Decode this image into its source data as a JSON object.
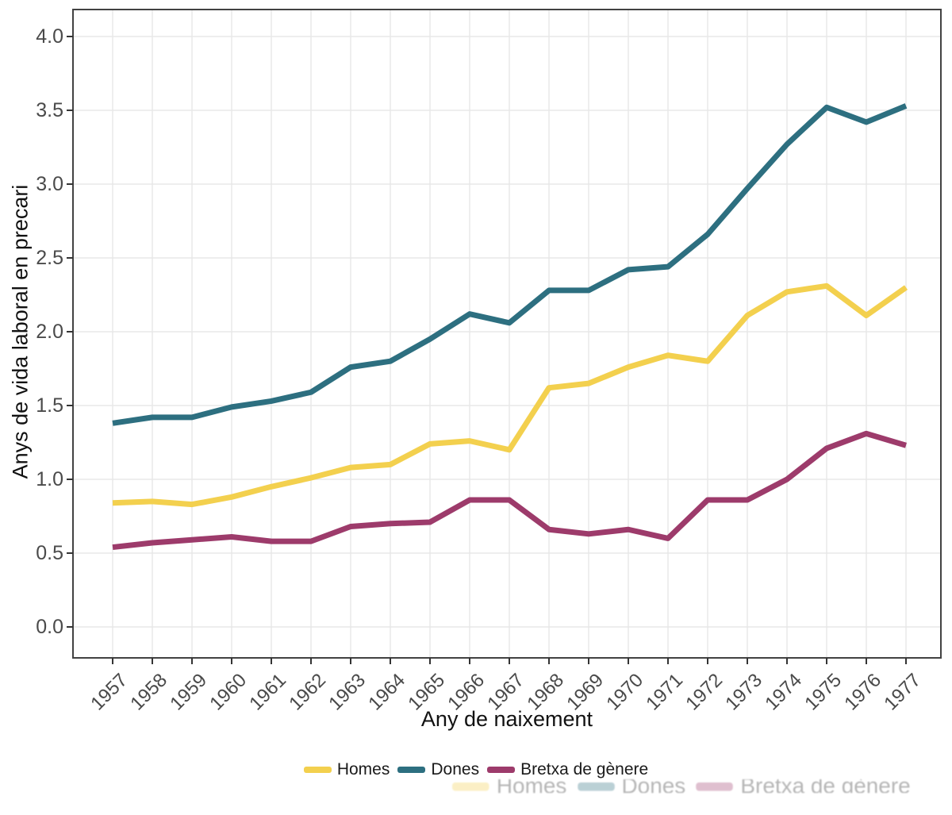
{
  "chart_data": {
    "type": "line",
    "title": "",
    "xlabel": "Any de naixement",
    "ylabel": "Anys de vida laboral en precari",
    "x": [
      1957,
      1958,
      1959,
      1960,
      1961,
      1962,
      1963,
      1964,
      1965,
      1966,
      1967,
      1968,
      1969,
      1970,
      1971,
      1972,
      1973,
      1974,
      1975,
      1976,
      1977
    ],
    "series": [
      {
        "name": "Homes",
        "color": "#F3D04E",
        "values": [
          0.84,
          0.85,
          0.83,
          0.88,
          0.95,
          1.01,
          1.08,
          1.1,
          1.24,
          1.26,
          1.2,
          1.62,
          1.65,
          1.76,
          1.84,
          1.8,
          2.11,
          2.27,
          2.31,
          2.11,
          2.3
        ]
      },
      {
        "name": "Dones",
        "color": "#2D6F80",
        "values": [
          1.38,
          1.42,
          1.42,
          1.49,
          1.53,
          1.59,
          1.76,
          1.8,
          1.95,
          2.12,
          2.06,
          2.28,
          2.28,
          2.42,
          2.44,
          2.66,
          2.97,
          3.27,
          3.52,
          3.42,
          3.53
        ]
      },
      {
        "name": "Bretxa de gènere",
        "color": "#9D3B6B",
        "values": [
          0.54,
          0.57,
          0.59,
          0.61,
          0.58,
          0.58,
          0.68,
          0.7,
          0.71,
          0.86,
          0.86,
          0.66,
          0.63,
          0.66,
          0.6,
          0.86,
          0.86,
          1.0,
          1.21,
          1.31,
          1.23
        ]
      }
    ],
    "ylim": [
      0.0,
      4.0
    ],
    "yticks": [
      0.0,
      0.5,
      1.0,
      1.5,
      2.0,
      2.5,
      3.0,
      3.5,
      4.0
    ],
    "ytick_labels": [
      "0.0",
      "0.5",
      "1.0",
      "1.5",
      "2.0",
      "2.5",
      "3.0",
      "3.5",
      "4.0"
    ],
    "grid": true,
    "legend_position": "bottom"
  },
  "colors": {
    "background": "#FFFFFF",
    "panel_border": "#424242",
    "gridline": "#E8E8E8",
    "tick_mark": "#343434",
    "tick_text": "#4A4A4A",
    "title_text": "#111111"
  }
}
